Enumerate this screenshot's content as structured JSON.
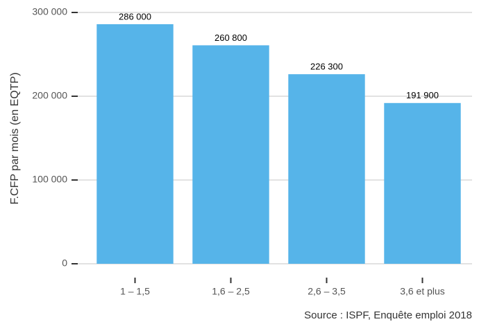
{
  "chart_data": {
    "type": "bar",
    "y_axis_label": "F.CFP par mois (en EQTP)",
    "caption": "Source : ISPF, Enquête emploi 2018",
    "categories": [
      "1 – 1,5",
      "1,6 – 2,5",
      "2,6 – 3,5",
      "3,6 et plus"
    ],
    "values": [
      286000,
      260800,
      226300,
      191900
    ],
    "value_labels": [
      "286 000",
      "260 800",
      "226 300",
      "191 900"
    ],
    "color": "#56b4e9",
    "ylim": [
      0,
      300000
    ],
    "yticks": [
      {
        "value": 0,
        "label": "0"
      },
      {
        "value": 100000,
        "label": "100 000"
      },
      {
        "value": 200000,
        "label": "200 000"
      },
      {
        "value": 300000,
        "label": "300 000"
      }
    ],
    "grid": true
  }
}
